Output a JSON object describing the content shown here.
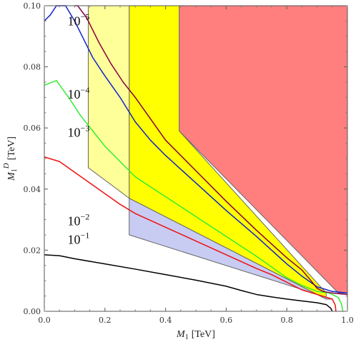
{
  "chart_data": {
    "type": "line",
    "title": "",
    "xlabel": {
      "main": "M",
      "sub": "1",
      "unit": "[TeV]"
    },
    "ylabel": {
      "main": "M",
      "sub": "1",
      "sup": "D",
      "unit": "[TeV]"
    },
    "xlim": [
      0.0,
      1.0
    ],
    "ylim": [
      0.0,
      0.1
    ],
    "x_ticks": [
      "0.0",
      "0.2",
      "0.4",
      "0.6",
      "0.8",
      "1.0"
    ],
    "y_ticks": [
      "0.00",
      "0.02",
      "0.04",
      "0.06",
      "0.08",
      "0.10"
    ],
    "grid": false,
    "regions": [
      {
        "name": "red-region",
        "color": "#ff7f7f",
        "points": [
          [
            0.445,
            0.1
          ],
          [
            1.0,
            0.1
          ],
          [
            1.0,
            0.006
          ],
          [
            0.97,
            0.006
          ],
          [
            0.445,
            0.059
          ]
        ]
      },
      {
        "name": "yellow-region",
        "color": "#ffff00",
        "points": [
          [
            0.28,
            0.1
          ],
          [
            0.445,
            0.1
          ],
          [
            0.445,
            0.059
          ],
          [
            0.93,
            0.006
          ],
          [
            0.93,
            0.004
          ],
          [
            0.28,
            0.037
          ]
        ]
      },
      {
        "name": "light-yellow-region",
        "color": "#ffff99",
        "points": [
          [
            0.145,
            0.1
          ],
          [
            0.28,
            0.1
          ],
          [
            0.28,
            0.037
          ],
          [
            0.145,
            0.047
          ]
        ]
      },
      {
        "name": "blue-region",
        "color": "#c8ccf2",
        "points": [
          [
            0.28,
            0.037
          ],
          [
            0.93,
            0.004
          ],
          [
            0.95,
            0.004
          ],
          [
            0.28,
            0.025
          ]
        ]
      }
    ],
    "series": [
      {
        "label": {
          "base": "10",
          "exp": "−1"
        },
        "color": "#000000",
        "points": [
          [
            0.0,
            0.0185
          ],
          [
            0.05,
            0.0182
          ],
          [
            0.1,
            0.0172
          ],
          [
            0.2,
            0.0155
          ],
          [
            0.3,
            0.0138
          ],
          [
            0.4,
            0.012
          ],
          [
            0.5,
            0.0102
          ],
          [
            0.6,
            0.0082
          ],
          [
            0.65,
            0.0068
          ],
          [
            0.7,
            0.0055
          ],
          [
            0.75,
            0.0047
          ],
          [
            0.8,
            0.004
          ],
          [
            0.85,
            0.0034
          ],
          [
            0.9,
            0.0028
          ],
          [
            0.93,
            0.0022
          ],
          [
            0.945,
            0.001
          ],
          [
            0.95,
            0.0
          ]
        ]
      },
      {
        "label": {
          "base": "10",
          "exp": "−2"
        },
        "color": "#ee1111",
        "points": [
          [
            0.0,
            0.0505
          ],
          [
            0.05,
            0.049
          ],
          [
            0.1,
            0.0455
          ],
          [
            0.15,
            0.042
          ],
          [
            0.2,
            0.0385
          ],
          [
            0.25,
            0.035
          ],
          [
            0.3,
            0.032
          ],
          [
            0.4,
            0.0275
          ],
          [
            0.5,
            0.023
          ],
          [
            0.6,
            0.0185
          ],
          [
            0.7,
            0.014
          ],
          [
            0.75,
            0.012
          ],
          [
            0.8,
            0.0095
          ],
          [
            0.85,
            0.007
          ],
          [
            0.9,
            0.0055
          ],
          [
            0.95,
            0.004
          ],
          [
            0.96,
            0.002
          ],
          [
            0.962,
            0.0
          ]
        ]
      },
      {
        "label": {
          "base": "10",
          "exp": "−3"
        },
        "color": "#33ee33",
        "points": [
          [
            0.0,
            0.074
          ],
          [
            0.04,
            0.0755
          ],
          [
            0.08,
            0.07
          ],
          [
            0.12,
            0.064
          ],
          [
            0.16,
            0.059
          ],
          [
            0.2,
            0.054
          ],
          [
            0.25,
            0.049
          ],
          [
            0.3,
            0.044
          ],
          [
            0.4,
            0.0375
          ],
          [
            0.5,
            0.031
          ],
          [
            0.6,
            0.0245
          ],
          [
            0.7,
            0.018
          ],
          [
            0.75,
            0.0145
          ],
          [
            0.8,
            0.011
          ],
          [
            0.85,
            0.0085
          ],
          [
            0.9,
            0.0065
          ],
          [
            0.94,
            0.006
          ],
          [
            0.97,
            0.0045
          ],
          [
            0.98,
            0.0025
          ],
          [
            0.985,
            0.0
          ]
        ]
      },
      {
        "label": {
          "base": "10",
          "exp": "−4"
        },
        "color": "#1122cc",
        "points": [
          [
            0.0,
            0.095
          ],
          [
            0.02,
            0.097
          ],
          [
            0.04,
            0.1
          ],
          [
            0.07,
            0.1
          ],
          [
            0.1,
            0.095
          ],
          [
            0.13,
            0.089
          ],
          [
            0.16,
            0.083
          ],
          [
            0.2,
            0.077
          ],
          [
            0.25,
            0.07
          ],
          [
            0.3,
            0.062
          ],
          [
            0.35,
            0.056
          ],
          [
            0.4,
            0.051
          ],
          [
            0.5,
            0.042
          ],
          [
            0.6,
            0.033
          ],
          [
            0.7,
            0.0245
          ],
          [
            0.75,
            0.02
          ],
          [
            0.8,
            0.0155
          ],
          [
            0.85,
            0.0115
          ],
          [
            0.9,
            0.008
          ],
          [
            0.95,
            0.0065
          ],
          [
            1.0,
            0.006
          ]
        ]
      },
      {
        "label": {
          "base": "10",
          "exp": "−5"
        },
        "color": "#880044",
        "points": [
          [
            0.1,
            0.1
          ],
          [
            0.11,
            0.1
          ],
          [
            0.14,
            0.096
          ],
          [
            0.18,
            0.088
          ],
          [
            0.22,
            0.081
          ],
          [
            0.26,
            0.075
          ],
          [
            0.3,
            0.07
          ],
          [
            0.35,
            0.063
          ],
          [
            0.4,
            0.056
          ],
          [
            0.5,
            0.046
          ],
          [
            0.6,
            0.036
          ],
          [
            0.7,
            0.0265
          ],
          [
            0.75,
            0.022
          ],
          [
            0.8,
            0.0175
          ],
          [
            0.85,
            0.0135
          ],
          [
            0.88,
            0.01
          ],
          [
            0.9,
            0.0075
          ],
          [
            0.92,
            0.0065
          ],
          [
            0.95,
            0.006
          ],
          [
            1.0,
            0.0055
          ]
        ]
      }
    ],
    "annotations": [
      {
        "name": "label-1e-5",
        "base": "10",
        "exp": "−5",
        "x": 0.19,
        "y": 0.095
      },
      {
        "name": "label-1e-4",
        "base": "10",
        "exp": "−4",
        "x": 0.19,
        "y": 0.071
      },
      {
        "name": "label-1e-3",
        "base": "10",
        "exp": "−3",
        "x": 0.19,
        "y": 0.0585
      },
      {
        "name": "label-1e-2",
        "base": "10",
        "exp": "−2",
        "x": 0.19,
        "y": 0.0295
      },
      {
        "name": "label-1e-1",
        "base": "10",
        "exp": "−1",
        "x": 0.19,
        "y": 0.0235
      }
    ]
  }
}
